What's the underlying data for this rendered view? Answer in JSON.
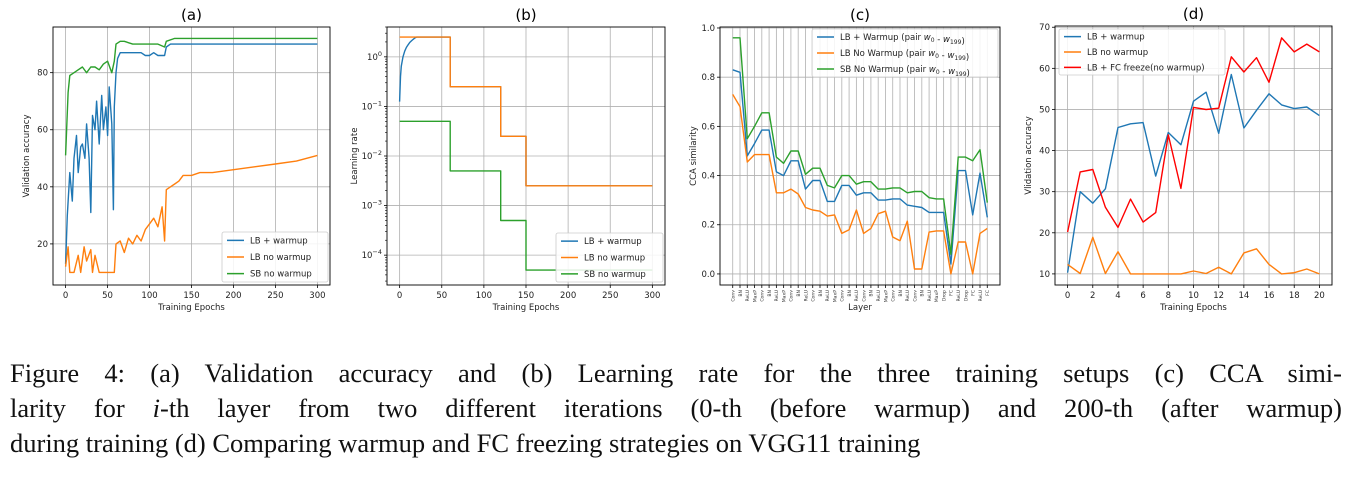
{
  "figure": {
    "caption": {
      "line1": "Figure 4: (a) Validation accuracy and (b) Learning rate for the three training setups (c) CCA simi-",
      "line2_pre": "larity for ",
      "line2_italic": "i",
      "line2_post": "-th layer from two different iterations (0-th (before warmup) and 200-th (after warmup)",
      "line3": "during training (d) Comparing warmup and FC freezing strategies on VGG11 training"
    }
  },
  "colors": {
    "blue": "#1f77b4",
    "orange": "#ff7f0e",
    "green": "#2ca02c",
    "red": "#ff0000"
  },
  "chart_data": [
    {
      "type": "line",
      "title": "(a)",
      "xlabel": "Training Epochs",
      "ylabel": "Validation accuracy",
      "xlim": [
        -15,
        315
      ],
      "ylim": [
        5.6,
        96
      ],
      "xticks": [
        0,
        50,
        100,
        150,
        200,
        250,
        300
      ],
      "yticks": [
        20,
        40,
        60,
        80
      ],
      "grid": true,
      "legend": "lower-right",
      "series": [
        {
          "name": "LB + warmup",
          "color": "#1f77b4",
          "x": [
            0,
            2,
            5,
            8,
            10,
            13,
            15,
            18,
            20,
            23,
            25,
            28,
            30,
            32,
            35,
            37,
            40,
            43,
            45,
            48,
            50,
            52,
            55,
            57,
            58,
            60,
            62,
            65,
            70,
            75,
            80,
            85,
            90,
            95,
            100,
            105,
            110,
            115,
            118,
            120,
            125,
            150,
            200,
            250,
            300
          ],
          "y": [
            13,
            30,
            45,
            35,
            50,
            58,
            45,
            54,
            55,
            50,
            62,
            50,
            31,
            65,
            60,
            70,
            55,
            72,
            60,
            68,
            58,
            75,
            62,
            32,
            68,
            80,
            85,
            87,
            87,
            87,
            87,
            87,
            87,
            86,
            86,
            87,
            86,
            86,
            86,
            89,
            90,
            90,
            90,
            90,
            90
          ]
        },
        {
          "name": "LB no warmup",
          "color": "#ff7f0e",
          "x": [
            0,
            3,
            5,
            10,
            15,
            18,
            22,
            25,
            30,
            32,
            35,
            40,
            45,
            50,
            58,
            60,
            65,
            70,
            75,
            80,
            85,
            90,
            95,
            100,
            105,
            110,
            115,
            118,
            120,
            125,
            130,
            135,
            140,
            145,
            150,
            160,
            175,
            200,
            225,
            250,
            275,
            300
          ],
          "y": [
            12,
            19,
            10,
            10,
            16,
            10,
            19,
            14,
            18,
            10,
            16,
            10,
            10,
            10,
            10,
            20,
            21,
            17,
            22,
            20,
            23,
            21,
            25,
            27,
            29,
            26,
            33,
            21,
            39,
            40,
            41,
            42,
            44,
            44,
            44,
            45,
            45,
            46,
            47,
            48,
            49,
            51
          ]
        },
        {
          "name": "SB no warmup",
          "color": "#2ca02c",
          "x": [
            0,
            3,
            5,
            10,
            15,
            20,
            25,
            30,
            35,
            40,
            45,
            50,
            55,
            58,
            60,
            65,
            70,
            80,
            90,
            100,
            110,
            118,
            120,
            130,
            150,
            300
          ],
          "y": [
            51,
            73,
            79,
            80,
            81,
            82,
            80,
            82,
            82,
            81,
            83,
            84,
            80,
            84,
            90,
            91,
            91,
            90,
            90,
            90,
            90,
            89,
            91,
            92,
            92,
            92
          ]
        }
      ]
    },
    {
      "type": "line",
      "title": "(b)",
      "xlabel": "Training Epochs",
      "ylabel": "Learning rate",
      "xlim": [
        -15,
        315
      ],
      "ylim": [
        2.5e-05,
        4
      ],
      "yscale": "log",
      "xticks": [
        0,
        50,
        100,
        150,
        200,
        250,
        300
      ],
      "yticks": [
        1,
        0.1,
        0.01,
        0.001,
        0.0001
      ],
      "ytick_labels": [
        "10^0",
        "10^-1",
        "10^-2",
        "10^-3",
        "10^-4"
      ],
      "grid": true,
      "legend": "lower-right",
      "series": [
        {
          "name": "LB + warmup",
          "color": "#1f77b4",
          "x": [
            0,
            1,
            2,
            4,
            6,
            8,
            10,
            12,
            14,
            16,
            18,
            20,
            60,
            60,
            120,
            120,
            150,
            150,
            300
          ],
          "y": [
            0.125,
            0.4,
            0.65,
            1.0,
            1.3,
            1.55,
            1.75,
            1.95,
            2.1,
            2.25,
            2.4,
            2.5,
            2.5,
            0.25,
            0.25,
            0.025,
            0.025,
            0.0025,
            0.0025
          ]
        },
        {
          "name": "LB no warmup",
          "color": "#ff7f0e",
          "x": [
            0,
            60,
            60,
            120,
            120,
            150,
            150,
            300
          ],
          "y": [
            2.5,
            2.5,
            0.25,
            0.25,
            0.025,
            0.025,
            0.0025,
            0.0025
          ]
        },
        {
          "name": "SB no warmup",
          "color": "#2ca02c",
          "x": [
            0,
            60,
            60,
            120,
            120,
            150,
            150,
            300
          ],
          "y": [
            0.05,
            0.05,
            0.005,
            0.005,
            0.0005,
            0.0005,
            5e-05,
            5e-05
          ]
        }
      ]
    },
    {
      "type": "line",
      "title": "(c)",
      "xlabel": "Layer",
      "ylabel": "CCA similarity",
      "ylim": [
        -0.045,
        1.004
      ],
      "yticks": [
        0.0,
        0.2,
        0.4,
        0.6,
        0.8,
        1.0
      ],
      "ytick_labels": [
        "0.0",
        "0.2",
        "0.4",
        "0.6",
        "0.8",
        "1.0"
      ],
      "categories": [
        "Conv",
        "BN",
        "ReLU",
        "MaxP",
        "Conv",
        "BN",
        "ReLU",
        "MaxP",
        "Conv",
        "BN",
        "ReLU",
        "Conv",
        "BN",
        "ReLU",
        "MaxP",
        "Conv",
        "BN",
        "ReLU",
        "Conv",
        "BN",
        "ReLU",
        "MaxP",
        "Conv",
        "BN",
        "ReLU",
        "Conv",
        "BN",
        "ReLU",
        "MaxP",
        "Drop",
        "FC",
        "ReLU",
        "Drop",
        "FC",
        "ReLU",
        "FC"
      ],
      "grid": true,
      "legend": "upper-right",
      "series": [
        {
          "name": "LB + Warmup (pair w0 - w199)",
          "color": "#1f77b4",
          "values": [
            0.83,
            0.82,
            0.48,
            0.53,
            0.585,
            0.585,
            0.415,
            0.4,
            0.46,
            0.46,
            0.345,
            0.38,
            0.38,
            0.295,
            0.295,
            0.36,
            0.36,
            0.32,
            0.33,
            0.33,
            0.3,
            0.3,
            0.305,
            0.305,
            0.28,
            0.275,
            0.27,
            0.25,
            0.25,
            0.25,
            0.04,
            0.42,
            0.42,
            0.24,
            0.41,
            0.23
          ]
        },
        {
          "name": "LB No Warmup (pair w0 - w199)",
          "color": "#ff7f0e",
          "values": [
            0.73,
            0.68,
            0.455,
            0.485,
            0.485,
            0.485,
            0.33,
            0.33,
            0.345,
            0.325,
            0.27,
            0.26,
            0.255,
            0.235,
            0.24,
            0.165,
            0.18,
            0.26,
            0.165,
            0.185,
            0.245,
            0.255,
            0.15,
            0.135,
            0.215,
            0.02,
            0.02,
            0.17,
            0.175,
            0.175,
            0.0,
            0.13,
            0.13,
            0.0,
            0.165,
            0.185
          ]
        },
        {
          "name": "SB No Warmup (pair w0 - w199)",
          "color": "#2ca02c",
          "values": [
            0.96,
            0.96,
            0.55,
            0.6,
            0.655,
            0.655,
            0.475,
            0.45,
            0.5,
            0.5,
            0.405,
            0.43,
            0.43,
            0.36,
            0.35,
            0.4,
            0.4,
            0.365,
            0.375,
            0.375,
            0.345,
            0.345,
            0.35,
            0.35,
            0.33,
            0.335,
            0.335,
            0.31,
            0.305,
            0.305,
            0.08,
            0.475,
            0.475,
            0.46,
            0.505,
            0.29
          ]
        }
      ]
    },
    {
      "type": "line",
      "title": "(d)",
      "xlabel": "Training Epochs",
      "ylabel": "Vlidation accuracy",
      "xlim": [
        -1,
        21
      ],
      "ylim": [
        7.3,
        70.3
      ],
      "xticks": [
        0,
        2,
        4,
        6,
        8,
        10,
        12,
        14,
        16,
        18,
        20
      ],
      "yticks": [
        10,
        20,
        30,
        40,
        50,
        60,
        70
      ],
      "grid": true,
      "legend": "upper-left",
      "x": [
        0,
        1,
        2,
        3,
        4,
        5,
        6,
        7,
        8,
        9,
        10,
        11,
        12,
        13,
        14,
        15,
        16,
        17,
        18,
        19,
        20
      ],
      "series": [
        {
          "name": "LB + warmup",
          "color": "#1f77b4",
          "values": [
            10.3,
            30,
            27.2,
            30.7,
            45.6,
            46.5,
            46.8,
            33.8,
            44.4,
            41.4,
            52,
            54.2,
            44.2,
            58.5,
            45.5,
            49.8,
            53.8,
            51.1,
            50.2,
            50.6,
            48.5
          ]
        },
        {
          "name": "LB no warmup",
          "color": "#ff7f0e",
          "values": [
            12.3,
            10.1,
            18.9,
            10.1,
            15.4,
            10,
            10,
            10,
            10,
            10,
            10.7,
            10.1,
            11.6,
            10,
            15.1,
            16.1,
            12.3,
            10,
            10.3,
            11.2,
            10
          ]
        },
        {
          "name": "LB + FC freeze(no warmup)",
          "color": "#ff0000",
          "values": [
            20.2,
            34.8,
            35.4,
            26.2,
            21.3,
            28.2,
            22.6,
            24.9,
            43.8,
            30.8,
            50.5,
            50,
            50.3,
            62.8,
            59.1,
            62.6,
            56.6,
            67.4,
            64,
            65.9,
            64
          ]
        }
      ]
    }
  ]
}
